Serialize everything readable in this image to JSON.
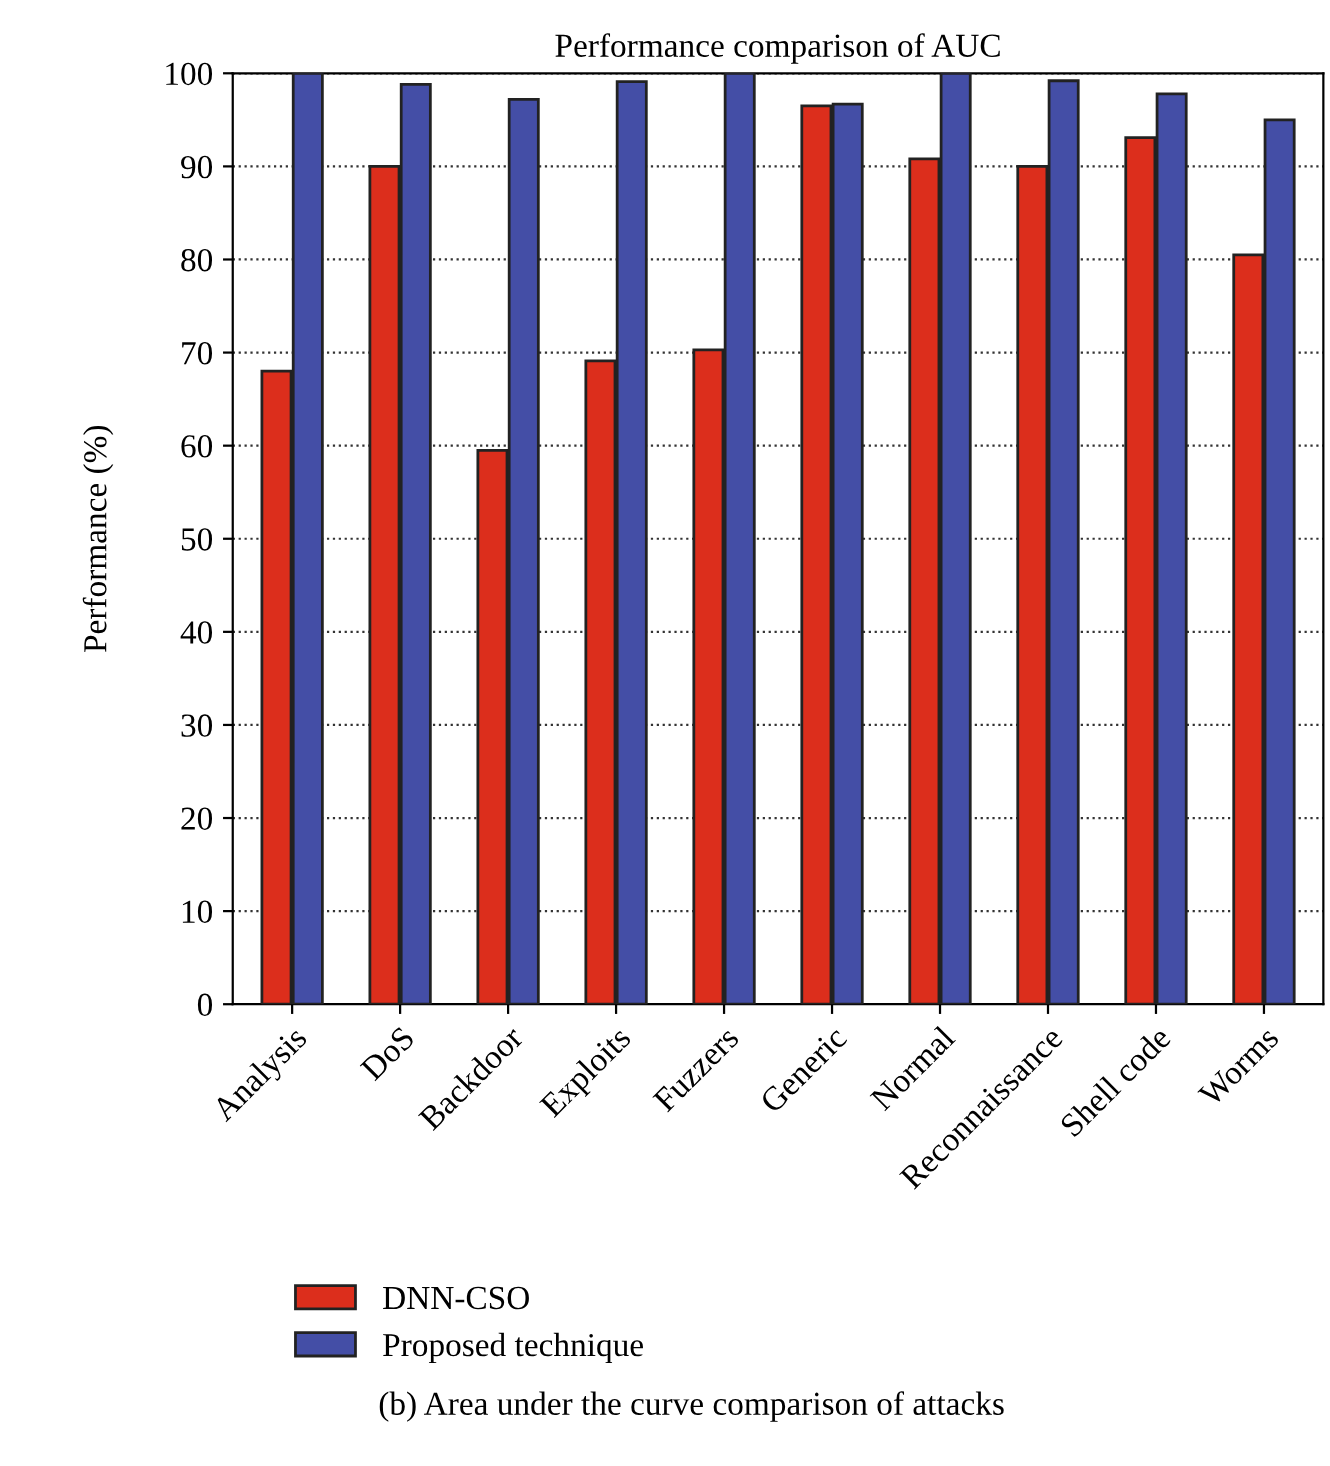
{
  "chart_data": {
    "type": "bar",
    "title": "Performance comparison of AUC",
    "ylabel": "Performance (%)",
    "categories": [
      "Analysis",
      "DoS",
      "Backdoor",
      "Exploits",
      "Fuzzers",
      "Generic",
      "Normal",
      "Reconnaissance",
      "Shell code",
      "Worms"
    ],
    "series": [
      {
        "name": "DNN-CSO",
        "color": "#dc2e1c",
        "values": [
          68.0,
          90.0,
          59.5,
          69.1,
          70.3,
          96.5,
          90.8,
          90.0,
          93.1,
          80.5
        ]
      },
      {
        "name": "Proposed technique",
        "color": "#444ea6",
        "values": [
          100,
          98.8,
          97.2,
          99.1,
          100,
          96.7,
          100,
          99.2,
          97.8,
          95.0
        ]
      }
    ],
    "ylim": [
      0,
      100
    ],
    "yticks": [
      0,
      10,
      20,
      30,
      40,
      50,
      60,
      70,
      80,
      90,
      100
    ],
    "grid": "y",
    "legend": "bottom left",
    "annotations": [
      "(b) Area under the curve comparison of attacks"
    ]
  }
}
